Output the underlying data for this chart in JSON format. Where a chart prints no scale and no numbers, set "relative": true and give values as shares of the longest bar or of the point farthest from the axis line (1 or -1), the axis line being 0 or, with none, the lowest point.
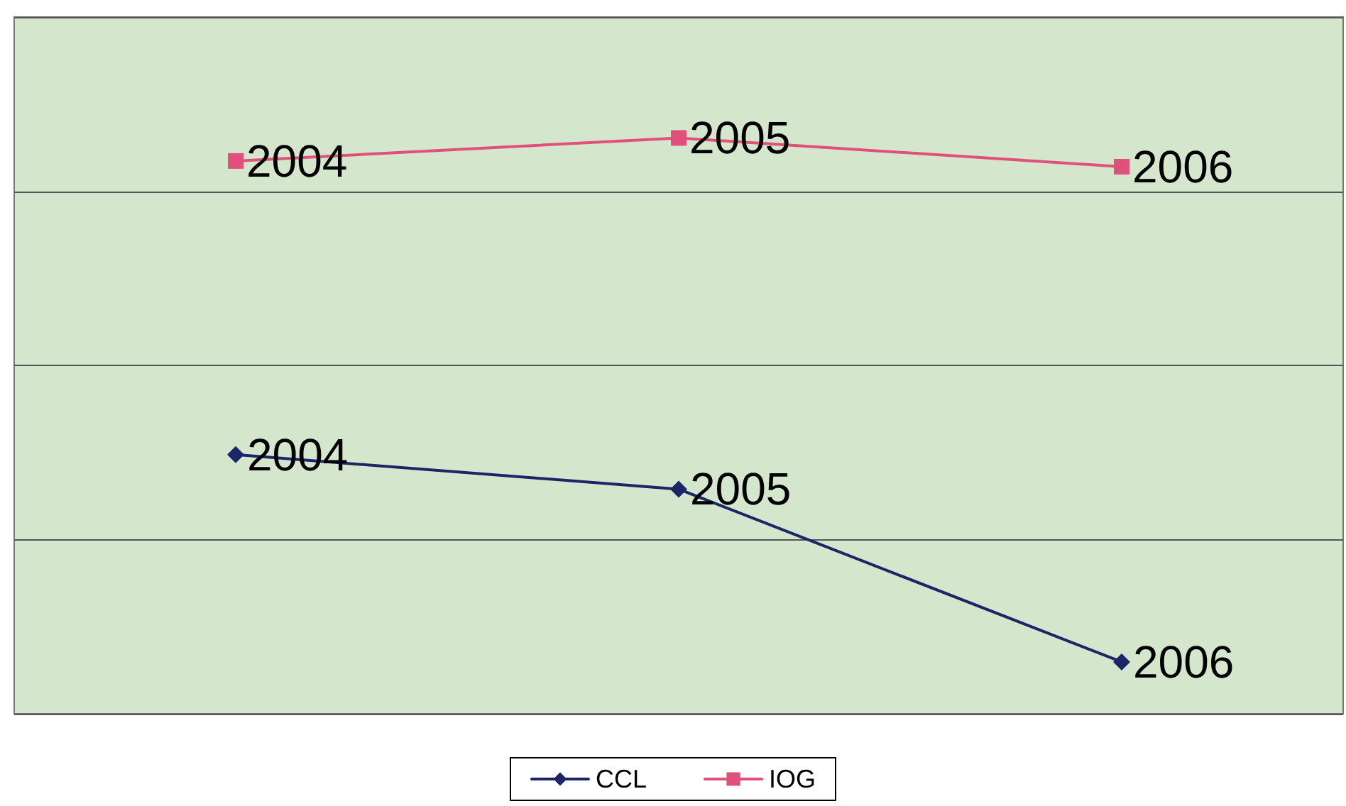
{
  "chart_data": {
    "type": "line",
    "relative": true,
    "categories": [
      "2004",
      "2005",
      "2006"
    ],
    "series": [
      {
        "name": "CCL",
        "color": "#1c2566",
        "marker": "diamond",
        "values": [
          0.45,
          0.39,
          0.09
        ]
      },
      {
        "name": "IOG",
        "color": "#e0507a",
        "marker": "square",
        "values": [
          0.96,
          1,
          0.95
        ]
      }
    ],
    "grid": "y",
    "legend": "bottom",
    "tick_labels": false,
    "line_style": "solid"
  }
}
